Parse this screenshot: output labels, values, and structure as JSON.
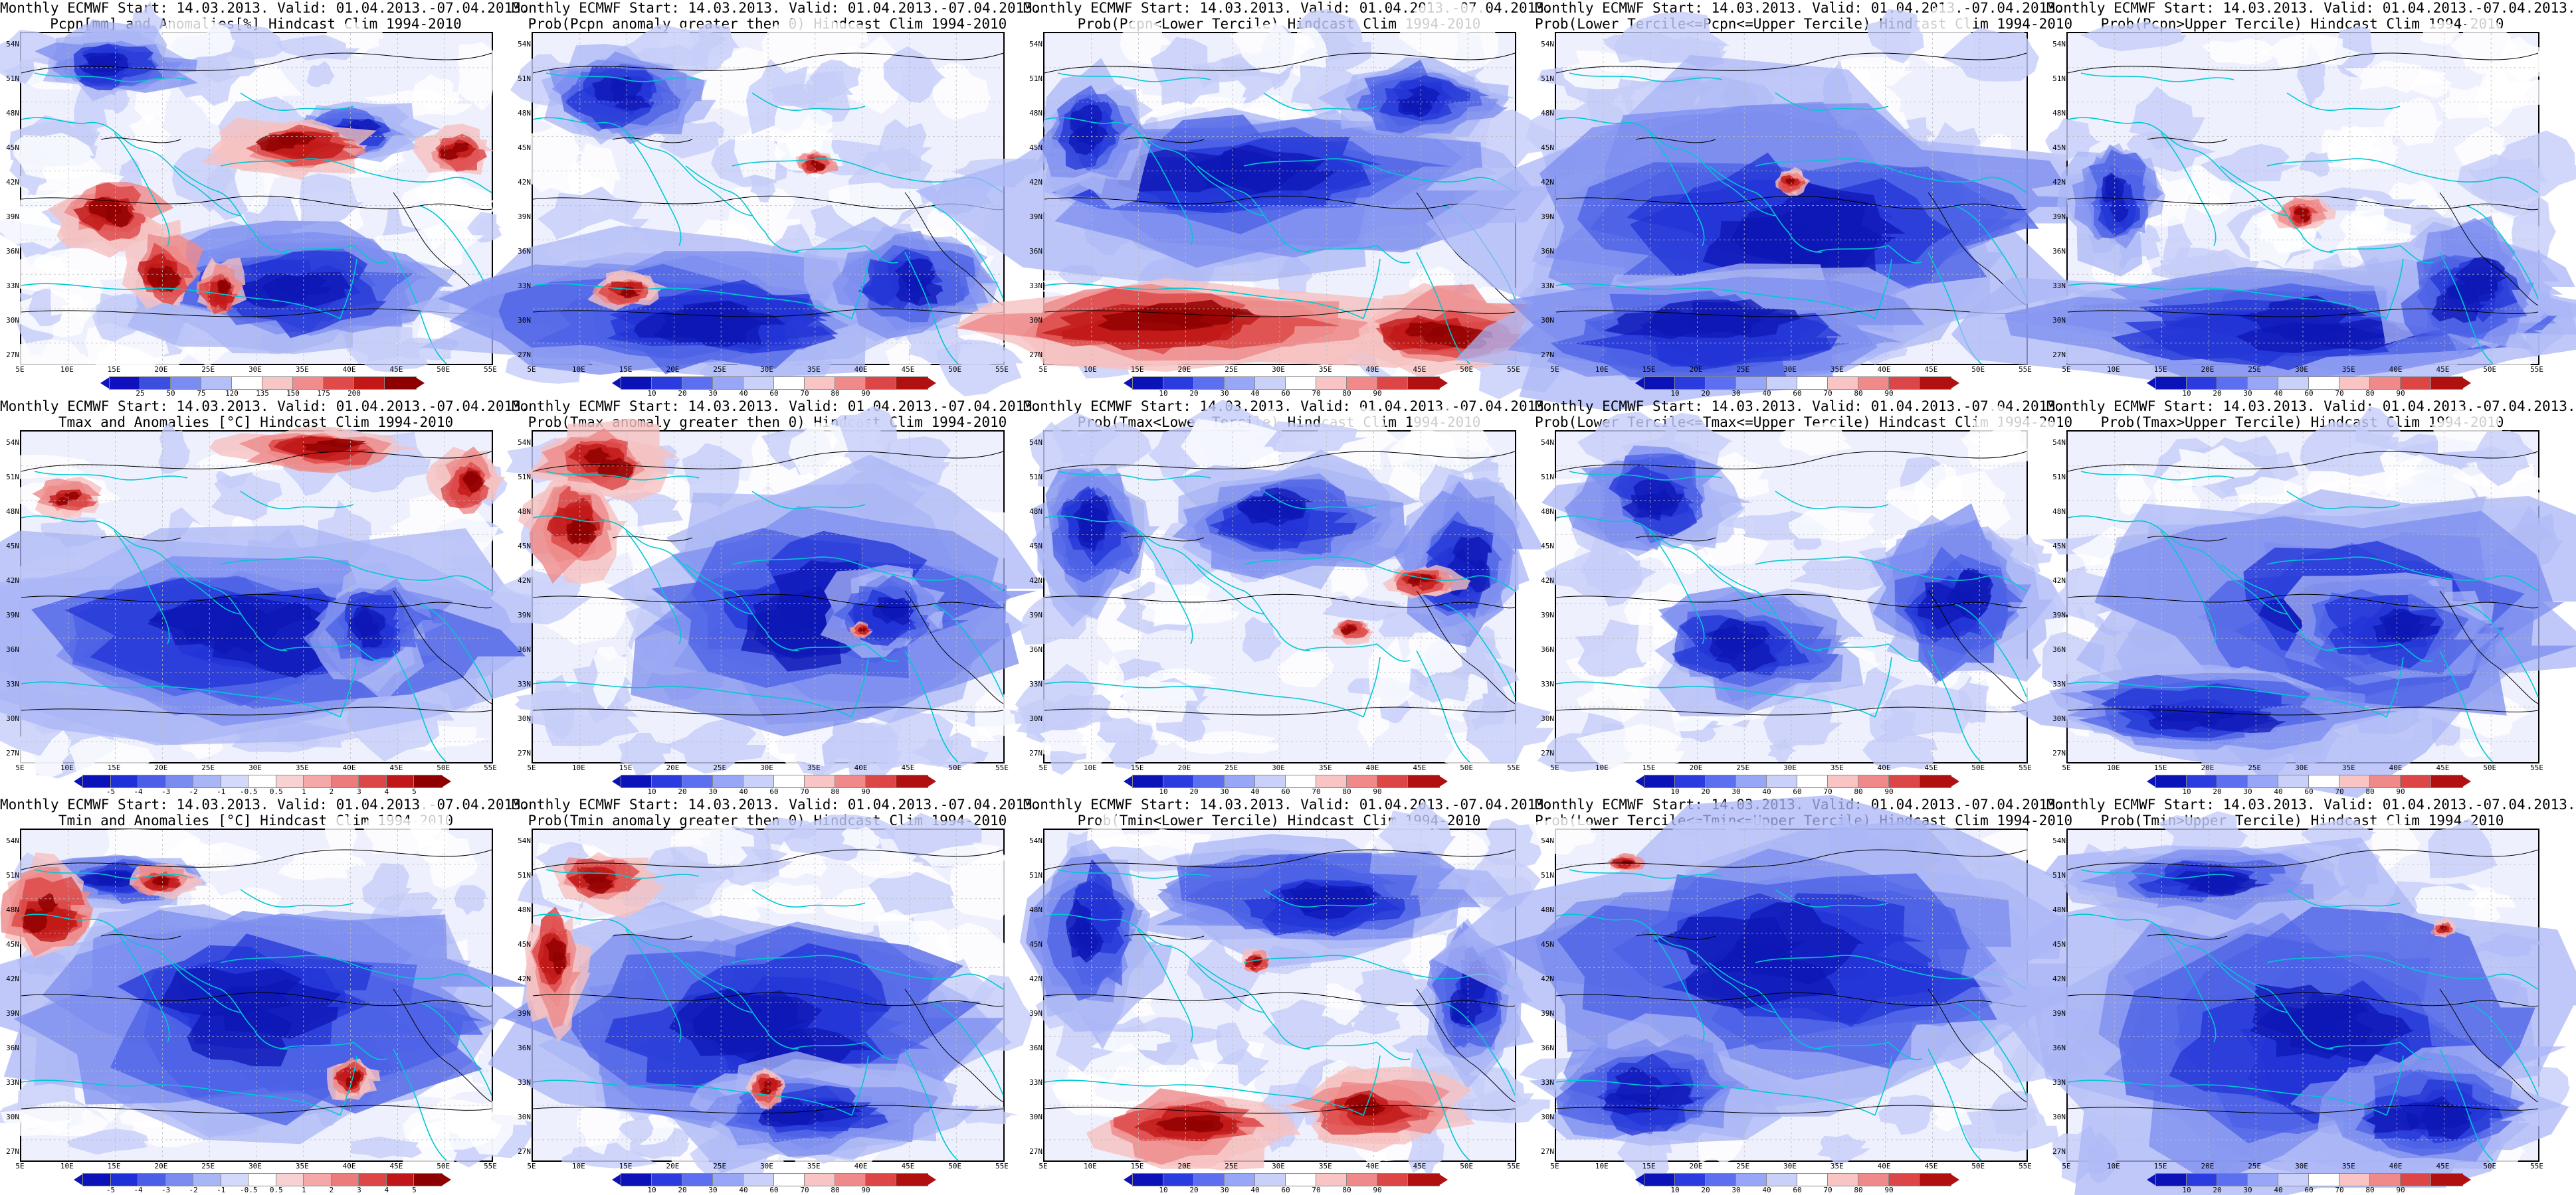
{
  "rows": [
    {
      "id": "pcpn",
      "colorbar": "anom_pcpn",
      "panels": [
        {
          "title1": "Monthly ECMWF Start: 14.03.2013. Valid: 01.04.2013.-07.04.2013.",
          "title2": "Pcpn[mm] and Anomalies[%] Hindcast Clim 1994-2010",
          "field": "pcpn_anom"
        },
        {
          "title1": "Monthly ECMWF Start: 14.03.2013. Valid: 01.04.2013.-07.04.2013.",
          "title2": "Prob(Pcpn anomaly greater then 0) Hindcast Clim 1994-2010",
          "field": "pcpn_gt0"
        },
        {
          "title1": "Monthly ECMWF Start: 14.03.2013. Valid: 01.04.2013.-07.04.2013.",
          "title2": "Prob(Pcpn<Lower Tercile) Hindcast Clim 1994-2010",
          "field": "pcpn_lower"
        },
        {
          "title1": "Monthly ECMWF Start: 14.03.2013. Valid: 01.04.2013.-07.04.2013.",
          "title2": "Prob(Lower Tercile<=Pcpn<=Upper Tercile) Hindcast Clim 1994-2010",
          "field": "pcpn_middle"
        },
        {
          "title1": "Monthly ECMWF Start: 14.03.2013. Valid: 01.04.2013.-07.04.2013.",
          "title2": "Prob(Pcpn>Upper Tercile) Hindcast Clim 1994-2010",
          "field": "pcpn_upper"
        }
      ]
    },
    {
      "id": "tmax",
      "colorbar": "anom_temp",
      "panels": [
        {
          "title1": "Monthly ECMWF Start: 14.03.2013. Valid: 01.04.2013.-07.04.2013.",
          "title2": "Tmax and Anomalies [°C] Hindcast Clim 1994-2010",
          "field": "tmax_anom"
        },
        {
          "title1": "Monthly ECMWF Start: 14.03.2013. Valid: 01.04.2013.-07.04.2013.",
          "title2": "Prob(Tmax anomaly greater then 0) Hindcast Clim 1994-2010",
          "field": "tmax_gt0"
        },
        {
          "title1": "Monthly ECMWF Start: 14.03.2013. Valid: 01.04.2013.-07.04.2013.",
          "title2": "Prob(Tmax<Lower Tercile) Hindcast Clim 1994-2010",
          "field": "tmax_lower"
        },
        {
          "title1": "Monthly ECMWF Start: 14.03.2013. Valid: 01.04.2013.-07.04.2013.",
          "title2": "Prob(Lower Tercile<=Tmax<=Upper Tercile) Hindcast Clim 1994-2010",
          "field": "tmax_middle"
        },
        {
          "title1": "Monthly ECMWF Start: 14.03.2013. Valid: 01.04.2013.-07.04.2013.",
          "title2": "Prob(Tmax>Upper Tercile) Hindcast Clim 1994-2010",
          "field": "tmax_upper"
        }
      ]
    },
    {
      "id": "tmin",
      "colorbar": "anom_temp",
      "panels": [
        {
          "title1": "Monthly ECMWF Start: 14.03.2013. Valid: 01.04.2013.-07.04.2013.",
          "title2": "Tmin and Anomalies [°C] Hindcast Clim 1994-2010",
          "field": "tmin_anom"
        },
        {
          "title1": "Monthly ECMWF Start: 14.03.2013. Valid: 01.04.2013.-07.04.2013.",
          "title2": "Prob(Tmin anomaly greater then 0) Hindcast Clim 1994-2010",
          "field": "tmin_gt0"
        },
        {
          "title1": "Monthly ECMWF Start: 14.03.2013. Valid: 01.04.2013.-07.04.2013.",
          "title2": "Prob(Tmin<Lower Tercile) Hindcast Clim 1994-2010",
          "field": "tmin_lower"
        },
        {
          "title1": "Monthly ECMWF Start: 14.03.2013. Valid: 01.04.2013.-07.04.2013.",
          "title2": "Prob(Lower Tercile<=Tmin<=Upper Tercile) Hindcast Clim 1994-2010",
          "field": "tmin_middle"
        },
        {
          "title1": "Monthly ECMWF Start: 14.03.2013. Valid: 01.04.2013.-07.04.2013.",
          "title2": "Prob(Tmin>Upper Tercile) Hindcast Clim 1994-2010",
          "field": "tmin_upper"
        }
      ]
    }
  ],
  "axes": {
    "lat_labels": [
      "54N",
      "51N",
      "48N",
      "45N",
      "42N",
      "39N",
      "36N",
      "33N",
      "30N",
      "27N"
    ],
    "lon_labels": [
      "5E",
      "10E",
      "15E",
      "20E",
      "25E",
      "30E",
      "35E",
      "40E",
      "45E",
      "50E",
      "55E"
    ]
  },
  "colorbars": {
    "anom_pcpn": {
      "ticks": [
        "25",
        "50",
        "75",
        "120",
        "135",
        "150",
        "175",
        "200"
      ],
      "colors": [
        "#1010c0",
        "#3a4ee0",
        "#7a8cf0",
        "#b4bff8",
        "#ffffff",
        "#f7c6c6",
        "#f08c8c",
        "#e04a4a",
        "#c41818",
        "#8e0000"
      ]
    },
    "prob": {
      "ticks": [
        "10",
        "20",
        "30",
        "40",
        "60",
        "70",
        "80",
        "90"
      ],
      "colors": [
        "#0a12b8",
        "#2a3be0",
        "#5b6ff0",
        "#97a6f6",
        "#c9d1fb",
        "#ffffff",
        "#f8c4c4",
        "#f08a8a",
        "#dc4646",
        "#b01010"
      ]
    },
    "anom_temp": {
      "ticks": [
        "-5",
        "-4",
        "-3",
        "-2",
        "-1",
        "-0.5",
        "0.5",
        "1",
        "2",
        "3",
        "4",
        "5"
      ],
      "colors": [
        "#0a12b8",
        "#1e30d8",
        "#4a5ee8",
        "#7a8cf0",
        "#a9b6f6",
        "#d2d9fb",
        "#ffffff",
        "#f8d2d2",
        "#f4a8a8",
        "#ec7c7c",
        "#dc4646",
        "#c01818",
        "#8e0000"
      ]
    }
  },
  "colors": {
    "coast": "#00c8d2",
    "contour": "#000000",
    "grid": "#bbbbbb",
    "red": "#d61c1c",
    "blue": "#1a28d8"
  }
}
